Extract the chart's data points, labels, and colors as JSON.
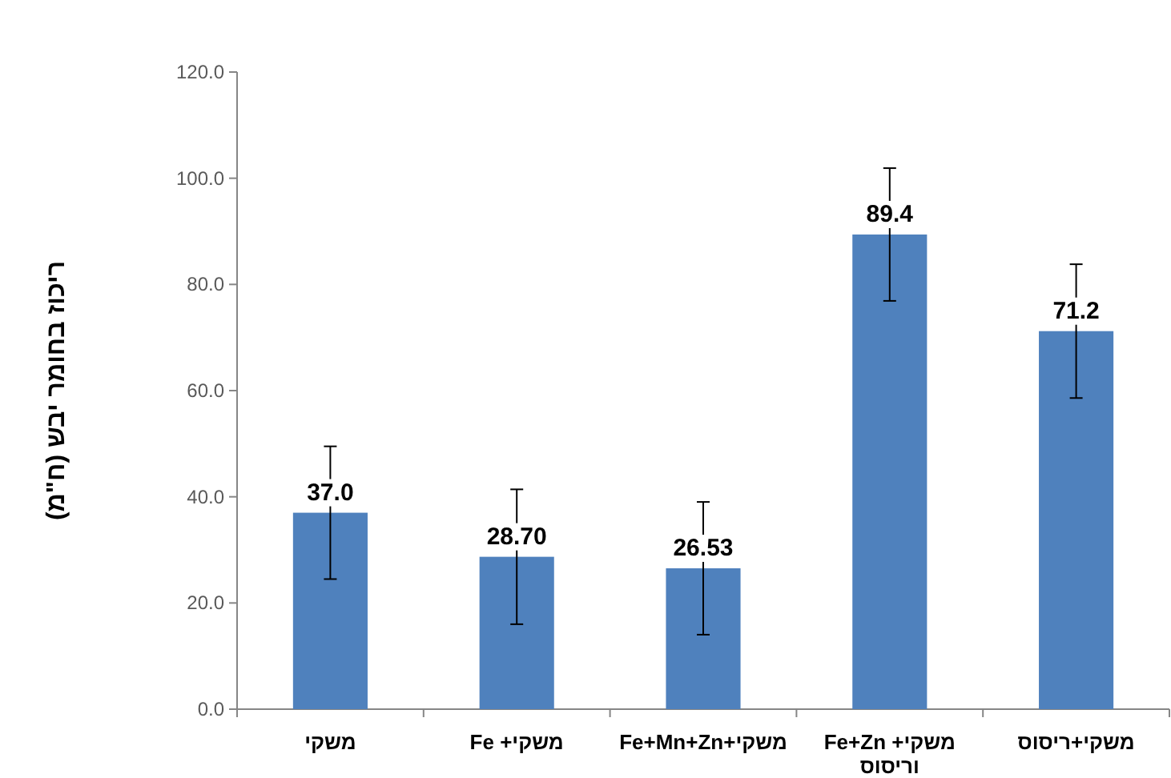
{
  "chart_data": {
    "type": "bar",
    "ylabel": "ריכוז בחומר יבש (ח\"מ)",
    "categories": [
      "משקי",
      "משקי+ Fe",
      "משקי+Fe+Mn+Zn",
      "משקי+ Fe+Zn וריסוס",
      "משקי+ריסוס"
    ],
    "values": [
      37.0,
      28.7,
      26.53,
      89.4,
      71.2
    ],
    "value_labels": [
      "37.0",
      "28.70",
      "26.53",
      "89.4",
      "71.2"
    ],
    "errors": [
      12.5,
      12.7,
      12.5,
      12.5,
      12.6
    ],
    "color": "#4f81bd",
    "ylim": [
      0,
      120
    ],
    "yticks": [
      {
        "value": 0,
        "label": "0.0"
      },
      {
        "value": 20,
        "label": "20.0"
      },
      {
        "value": 40,
        "label": "40.0"
      },
      {
        "value": 60,
        "label": "60.0"
      },
      {
        "value": 80,
        "label": "80.0"
      },
      {
        "value": 100,
        "label": "100.0"
      },
      {
        "value": 120,
        "label": "120.0"
      }
    ],
    "grid": false
  }
}
